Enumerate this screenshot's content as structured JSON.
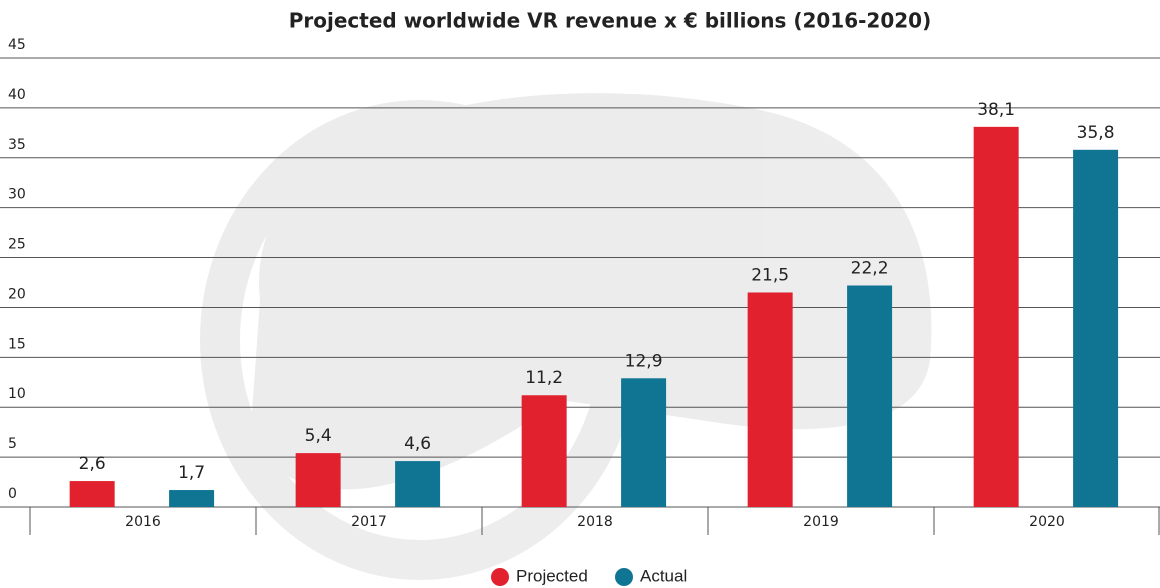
{
  "chart_data": {
    "type": "bar",
    "title": "Projected worldwide VR revenue  x € billions (2016-2020)",
    "categories": [
      "2016",
      "2017",
      "2018",
      "2019",
      "2020"
    ],
    "series": [
      {
        "name": "Projected",
        "color": "#e2212f",
        "values": [
          2.6,
          5.4,
          11.2,
          21.5,
          38.1
        ],
        "value_labels": [
          "2,6",
          "5,4",
          "11,2",
          "21,5",
          "38,1"
        ]
      },
      {
        "name": "Actual",
        "color": "#107593",
        "values": [
          1.7,
          4.6,
          12.9,
          22.2,
          35.8
        ],
        "value_labels": [
          "1,7",
          "4,6",
          "12,9",
          "22,2",
          "35,8"
        ]
      }
    ],
    "ylim": [
      0,
      45
    ],
    "yticks": [
      0,
      5,
      10,
      15,
      20,
      25,
      30,
      35,
      40,
      45
    ],
    "grid": true,
    "legend": "bottom"
  }
}
